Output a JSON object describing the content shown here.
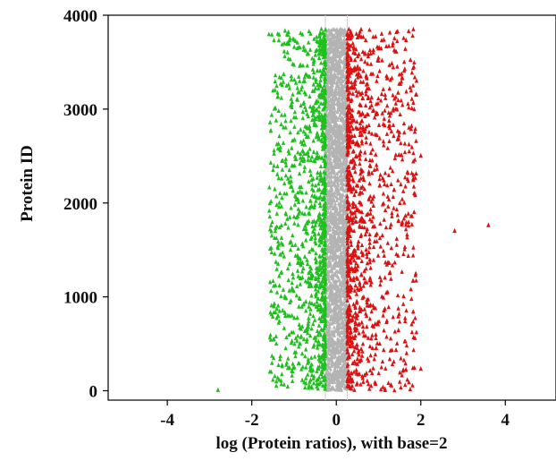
{
  "chart_data": {
    "type": "scatter",
    "title": "",
    "xlabel": "log (Protein ratios), with base=2",
    "ylabel": "Protein ID",
    "xlim": [
      -5.4,
      5.2
    ],
    "ylim": [
      -100,
      4000
    ],
    "xticks": [
      -4,
      -2,
      0,
      2,
      4
    ],
    "yticks": [
      0,
      1000,
      2000,
      3000,
      4000
    ],
    "grid": false,
    "legend": "none",
    "threshold_lines_x": [
      -0.26,
      0.26
    ],
    "marker": "triangle-up",
    "series": [
      {
        "role": "down-regulated",
        "color": "#1fbf1f",
        "x_range": [
          -1.6,
          -0.26
        ],
        "y_range": [
          0,
          3850
        ],
        "point_count": 1150,
        "outliers": [
          {
            "x": -2.8,
            "y": 5
          }
        ]
      },
      {
        "role": "unchanged",
        "color": "#b3b3b3",
        "x_range": [
          -0.26,
          0.26
        ],
        "y_range": [
          0,
          3850
        ],
        "point_count": 2700,
        "outliers": []
      },
      {
        "role": "up-regulated",
        "color": "#dd1111",
        "x_range": [
          0.26,
          1.9
        ],
        "y_range": [
          0,
          3850
        ],
        "point_count": 1150,
        "outliers": [
          {
            "x": 3.6,
            "y": 1760
          },
          {
            "x": 2.8,
            "y": 1700
          },
          {
            "x": 2.0,
            "y": 2500
          },
          {
            "x": 2.0,
            "y": 230
          }
        ]
      }
    ]
  }
}
